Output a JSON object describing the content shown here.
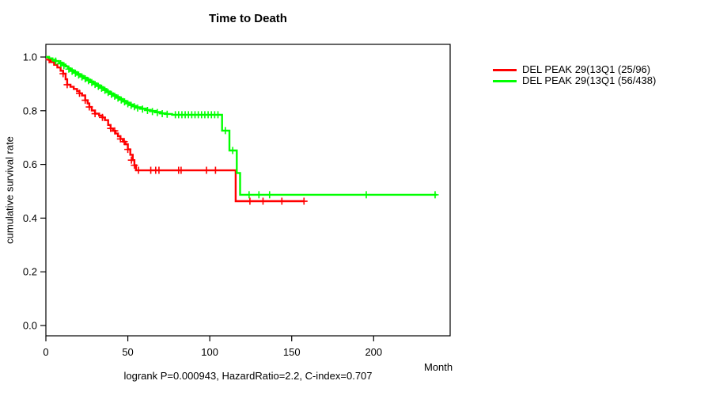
{
  "chart_data": {
    "type": "line",
    "subtype": "kaplan-meier-step-survival",
    "title": "Time to Death",
    "xlabel": "Month",
    "ylabel": "cumulative survival rate",
    "footnote": "logrank P=0.000943, HazardRatio=2.2, C-index=0.707",
    "xlim": [
      0,
      247
    ],
    "ylim": [
      0.0,
      1.0
    ],
    "xticks": [
      0,
      50,
      100,
      150,
      200
    ],
    "xtick_labels": [
      "0",
      "50",
      "100",
      "150",
      "200"
    ],
    "yticks": [
      0.0,
      0.2,
      0.4,
      0.6,
      0.8,
      1.0
    ],
    "ytick_labels": [
      "0.0",
      "0.2",
      "0.4",
      "0.6",
      "0.8",
      "1.0"
    ],
    "grid": false,
    "legend_position": "outside-right",
    "axis_color": "#000000",
    "series": [
      {
        "name": "DEL PEAK 29(13Q1 (25/96)",
        "color": "#ff0000",
        "steps": [
          [
            0,
            1.0
          ],
          [
            1.5,
            0.99
          ],
          [
            3,
            0.981
          ],
          [
            5,
            0.971
          ],
          [
            7,
            0.961
          ],
          [
            9,
            0.949
          ],
          [
            10.5,
            0.938
          ],
          [
            12,
            0.917
          ],
          [
            13,
            0.897
          ],
          [
            15,
            0.889
          ],
          [
            17,
            0.881
          ],
          [
            19,
            0.873
          ],
          [
            20.5,
            0.865
          ],
          [
            22,
            0.857
          ],
          [
            24,
            0.839
          ],
          [
            25.5,
            0.827
          ],
          [
            26.5,
            0.814
          ],
          [
            28,
            0.801
          ],
          [
            30,
            0.789
          ],
          [
            32.5,
            0.782
          ],
          [
            34.5,
            0.775
          ],
          [
            36,
            0.765
          ],
          [
            38,
            0.747
          ],
          [
            39.5,
            0.734
          ],
          [
            41,
            0.725
          ],
          [
            42.5,
            0.715
          ],
          [
            44,
            0.705
          ],
          [
            45.5,
            0.695
          ],
          [
            47,
            0.685
          ],
          [
            48.5,
            0.675
          ],
          [
            50,
            0.656
          ],
          [
            51.5,
            0.636
          ],
          [
            53,
            0.616
          ],
          [
            54,
            0.597
          ],
          [
            55,
            0.578
          ],
          [
            115.8,
            0.463
          ],
          [
            157.5,
            0.463
          ]
        ],
        "censors": [
          [
            2,
            0.99
          ],
          [
            10.5,
            0.938
          ],
          [
            13,
            0.897
          ],
          [
            20.5,
            0.865
          ],
          [
            24,
            0.839
          ],
          [
            26.5,
            0.814
          ],
          [
            30,
            0.789
          ],
          [
            34.5,
            0.775
          ],
          [
            39.5,
            0.734
          ],
          [
            42,
            0.725
          ],
          [
            45.5,
            0.695
          ],
          [
            47.8,
            0.685
          ],
          [
            50,
            0.656
          ],
          [
            52.2,
            0.616
          ],
          [
            54,
            0.597
          ],
          [
            56.5,
            0.578
          ],
          [
            64,
            0.578
          ],
          [
            67,
            0.578
          ],
          [
            69,
            0.578
          ],
          [
            81,
            0.578
          ],
          [
            82.5,
            0.578
          ],
          [
            98,
            0.578
          ],
          [
            103.5,
            0.578
          ],
          [
            124.5,
            0.463
          ],
          [
            132.5,
            0.463
          ],
          [
            144,
            0.463
          ],
          [
            157.5,
            0.463
          ]
        ]
      },
      {
        "name": "DEL PEAK 29(13Q1 (56/438)",
        "color": "#00ff00",
        "steps": [
          [
            0,
            1.0
          ],
          [
            2,
            0.995
          ],
          [
            4,
            0.99
          ],
          [
            6,
            0.985
          ],
          [
            8,
            0.979
          ],
          [
            10,
            0.972
          ],
          [
            12,
            0.965
          ],
          [
            13.5,
            0.958
          ],
          [
            15,
            0.951
          ],
          [
            17,
            0.944
          ],
          [
            19,
            0.937
          ],
          [
            21,
            0.93
          ],
          [
            23,
            0.923
          ],
          [
            25,
            0.916
          ],
          [
            27,
            0.909
          ],
          [
            29,
            0.902
          ],
          [
            31,
            0.895
          ],
          [
            33,
            0.888
          ],
          [
            35,
            0.881
          ],
          [
            37,
            0.872
          ],
          [
            39,
            0.865
          ],
          [
            41,
            0.858
          ],
          [
            43,
            0.851
          ],
          [
            45,
            0.844
          ],
          [
            47,
            0.837
          ],
          [
            49,
            0.83
          ],
          [
            51,
            0.823
          ],
          [
            53,
            0.818
          ],
          [
            55,
            0.813
          ],
          [
            58,
            0.808
          ],
          [
            61,
            0.803
          ],
          [
            64,
            0.799
          ],
          [
            67,
            0.795
          ],
          [
            70,
            0.791
          ],
          [
            73,
            0.788
          ],
          [
            77,
            0.785
          ],
          [
            107.5,
            0.726
          ],
          [
            112,
            0.652
          ],
          [
            116.5,
            0.568
          ],
          [
            118.5,
            0.487
          ],
          [
            238.5,
            0.487
          ]
        ],
        "censors": [
          [
            6,
            0.985
          ],
          [
            9,
            0.975
          ],
          [
            11,
            0.968
          ],
          [
            14,
            0.955
          ],
          [
            16,
            0.947
          ],
          [
            18,
            0.94
          ],
          [
            20,
            0.933
          ],
          [
            22,
            0.926
          ],
          [
            24,
            0.919
          ],
          [
            26,
            0.912
          ],
          [
            28,
            0.905
          ],
          [
            30,
            0.898
          ],
          [
            32,
            0.891
          ],
          [
            34,
            0.884
          ],
          [
            36,
            0.876
          ],
          [
            38,
            0.868
          ],
          [
            40,
            0.861
          ],
          [
            42,
            0.854
          ],
          [
            44,
            0.847
          ],
          [
            46,
            0.84
          ],
          [
            48,
            0.833
          ],
          [
            50,
            0.826
          ],
          [
            52,
            0.82
          ],
          [
            54,
            0.815
          ],
          [
            56,
            0.81
          ],
          [
            59,
            0.806
          ],
          [
            62,
            0.801
          ],
          [
            65,
            0.797
          ],
          [
            68,
            0.793
          ],
          [
            71,
            0.789
          ],
          [
            74,
            0.787
          ],
          [
            79,
            0.785
          ],
          [
            81,
            0.785
          ],
          [
            83,
            0.785
          ],
          [
            85,
            0.785
          ],
          [
            87,
            0.785
          ],
          [
            89,
            0.785
          ],
          [
            91,
            0.785
          ],
          [
            93,
            0.785
          ],
          [
            95,
            0.785
          ],
          [
            97,
            0.785
          ],
          [
            99,
            0.785
          ],
          [
            101,
            0.785
          ],
          [
            103,
            0.785
          ],
          [
            105,
            0.785
          ],
          [
            109.5,
            0.726
          ],
          [
            114,
            0.652
          ],
          [
            124,
            0.487
          ],
          [
            130,
            0.487
          ],
          [
            136.5,
            0.487
          ],
          [
            195.5,
            0.487
          ],
          [
            237.5,
            0.487
          ]
        ]
      }
    ]
  }
}
